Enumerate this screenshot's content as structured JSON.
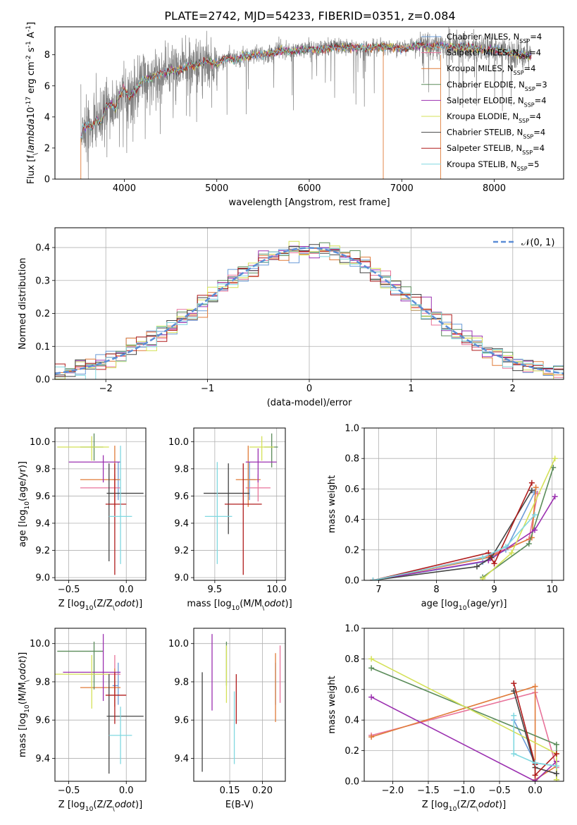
{
  "figure": {
    "title": "PLATE=2742, MJD=54233, FIBERID=0351, z=0.084"
  },
  "series": [
    {
      "name": "Chabrier MILES, N$_{SSP}$=4",
      "label_main": "Chabrier MILES, N",
      "label_sub": "SSP",
      "label_tail": "=4",
      "color": "#6a9bd8"
    },
    {
      "name": "Salpeter MILES, N$_{SSP}$=4",
      "label_main": "Salpeter MILES, N",
      "label_sub": "SSP",
      "label_tail": "=4",
      "color": "#e8739a"
    },
    {
      "name": "Kroupa MILES, N$_{SSP}$=4",
      "label_main": "Kroupa MILES, N",
      "label_sub": "SSP",
      "label_tail": "=4",
      "color": "#e07b39"
    },
    {
      "name": "Chabrier ELODIE, N$_{SSP}$=3",
      "label_main": "Chabrier ELODIE, N",
      "label_sub": "SSP",
      "label_tail": "=3",
      "color": "#5b8c5a"
    },
    {
      "name": "Salpeter ELODIE, N$_{SSP}$=4",
      "label_main": "Salpeter ELODIE, N",
      "label_sub": "SSP",
      "label_tail": "=4",
      "color": "#9b30b0"
    },
    {
      "name": "Kroupa ELODIE, N$_{SSP}$=4",
      "label_main": "Kroupa ELODIE, N",
      "label_sub": "SSP",
      "label_tail": "=4",
      "color": "#d4e157"
    },
    {
      "name": "Chabrier STELIB, N$_{SSP}$=4",
      "label_main": "Chabrier STELIB, N",
      "label_sub": "SSP",
      "label_tail": "=4",
      "color": "#444444"
    },
    {
      "name": "Salpeter STELIB, N$_{SSP}$=4",
      "label_main": "Salpeter STELIB, N",
      "label_sub": "SSP",
      "label_tail": "=4",
      "color": "#b01c1c"
    },
    {
      "name": "Kroupa STELIB, N$_{SSP}$=5",
      "label_main": "Kroupa STELIB, N",
      "label_sub": "SSP",
      "label_tail": "=5",
      "color": "#80d8e0"
    }
  ],
  "chart_data": [
    {
      "id": "spectrum",
      "type": "line",
      "xlabel": "wavelength [Angstrom, rest frame]",
      "ylabel": "Flux [f$_\\lambda$10$^{-17}$ erg cm$^{-2}$ s$^{-1}$ A$^{-1}$]",
      "xlim": [
        3250,
        8750
      ],
      "ylim": [
        0,
        9.8
      ],
      "xticks": [
        4000,
        5000,
        6000,
        7000,
        8000
      ],
      "yticks": [
        0,
        2,
        4,
        6,
        8
      ],
      "grid": false,
      "legend": "upper-right",
      "data_color": "#808080",
      "model_color": "#80d8e0",
      "model": {
        "x": [
          3530,
          3550,
          3600,
          3650,
          3700,
          3750,
          3800,
          3850,
          3900,
          3950,
          4000,
          4050,
          4100,
          4150,
          4200,
          4300,
          4400,
          4500,
          4600,
          4700,
          4800,
          4900,
          5000,
          5100,
          5200,
          5300,
          5400,
          5500,
          5600,
          5700,
          5800,
          5900,
          6000,
          6100,
          6200,
          6300,
          6400,
          6500,
          6600,
          6700,
          6800,
          6900,
          7000,
          7100,
          7200,
          7300,
          7400,
          7500,
          7600,
          7700,
          7800,
          7900,
          8000,
          8100,
          8200,
          8300,
          8400
        ],
        "y": [
          2.6,
          3.2,
          3.5,
          3.3,
          3.9,
          3.6,
          4.7,
          4.9,
          4.5,
          5.4,
          5.8,
          5.2,
          5.6,
          5.9,
          6.4,
          6.5,
          6.8,
          7.0,
          7.0,
          7.3,
          7.4,
          7.6,
          7.4,
          7.8,
          7.7,
          7.9,
          8.0,
          8.0,
          8.1,
          8.3,
          8.2,
          8.3,
          8.4,
          8.3,
          8.4,
          8.5,
          8.5,
          8.5,
          8.4,
          8.5,
          8.5,
          8.5,
          8.4,
          8.5,
          8.6,
          8.5,
          8.6,
          8.5,
          8.5,
          8.5,
          8.4,
          8.3,
          8.3,
          8.2,
          8.1,
          8.0,
          7.9
        ]
      }
    },
    {
      "id": "residuals",
      "type": "bar",
      "xlabel": "(data-model)/error",
      "ylabel": "Normed distribution",
      "xlim": [
        -2.5,
        2.5
      ],
      "ylim": [
        0,
        0.46
      ],
      "xticks": [
        -2,
        -1,
        0,
        1,
        2
      ],
      "yticks": [
        0.0,
        0.1,
        0.2,
        0.3,
        0.4
      ],
      "grid": true,
      "legend": "upper-right",
      "legend_label": "$\\mathcal{N}(0,1)$",
      "legend_label_text": "𝒩(0, 1)",
      "gaussian_color": "#5b8dd6",
      "bin_width": 0.1,
      "bin_start": -2.5
    },
    {
      "id": "age-vs-Z",
      "type": "scatter",
      "xlabel": "Z [log$_{10}$(Z/Z$_\\odot$)]",
      "ylabel": "age  [log$_{10}$(age/yr)]",
      "xlim": [
        -0.62,
        0.17
      ],
      "ylim": [
        8.98,
        10.1
      ],
      "xticks": [
        -0.5,
        0.0
      ],
      "yticks": [
        9.0,
        9.2,
        9.4,
        9.6,
        9.8,
        10.0
      ],
      "grid": true,
      "points": [
        {
          "series": 0,
          "x": -0.07,
          "y": 9.72,
          "xerr": [
            0.05,
            0.0
          ],
          "yerr": [
            0.15,
            0.13
          ]
        },
        {
          "series": 1,
          "x": -0.1,
          "y": 9.66,
          "xerr": [
            0.3,
            0.05
          ],
          "yerr": [
            0.1,
            0.1
          ]
        },
        {
          "series": 2,
          "x": -0.1,
          "y": 9.72,
          "xerr": [
            0.3,
            0.05
          ],
          "yerr": [
            0.2,
            0.25
          ]
        },
        {
          "series": 3,
          "x": -0.28,
          "y": 9.96,
          "xerr": [
            0.12,
            0.08
          ],
          "yerr": [
            0.1,
            0.1
          ]
        },
        {
          "series": 4,
          "x": -0.2,
          "y": 9.85,
          "xerr": [
            0.3,
            0.15
          ],
          "yerr": [
            0.15,
            0.05
          ]
        },
        {
          "series": 5,
          "x": -0.3,
          "y": 9.96,
          "xerr": [
            0.3,
            0.15
          ],
          "yerr": [
            0.1,
            0.08
          ]
        },
        {
          "series": 6,
          "x": -0.15,
          "y": 9.62,
          "xerr": [
            0.02,
            0.3
          ],
          "yerr": [
            0.5,
            0.22
          ]
        },
        {
          "series": 7,
          "x": -0.1,
          "y": 9.54,
          "xerr": [
            0.08,
            0.1
          ],
          "yerr": [
            0.52,
            0.3
          ]
        },
        {
          "series": 8,
          "x": -0.05,
          "y": 9.45,
          "xerr": [
            0.1,
            0.1
          ],
          "yerr": [
            0.35,
            0.52
          ]
        }
      ]
    },
    {
      "id": "age-vs-mass",
      "type": "scatter",
      "xlabel": "mass [log$_{10}$(M/M$_\\odot$)]",
      "ylabel": "",
      "xlim": [
        9.33,
        10.07
      ],
      "ylim": [
        8.98,
        10.1
      ],
      "xticks": [
        9.5,
        10.0
      ],
      "yticks": [
        9.0,
        9.2,
        9.4,
        9.6,
        9.8,
        10.0
      ],
      "grid": true,
      "points": [
        {
          "series": 0,
          "x": 9.78,
          "y": 9.72,
          "xerr": [
            0.05,
            0.05
          ],
          "yerr": [
            0.15,
            0.13
          ]
        },
        {
          "series": 1,
          "x": 9.85,
          "y": 9.66,
          "xerr": [
            0.1,
            0.1
          ],
          "yerr": [
            0.1,
            0.1
          ]
        },
        {
          "series": 2,
          "x": 9.77,
          "y": 9.72,
          "xerr": [
            0.1,
            0.1
          ],
          "yerr": [
            0.2,
            0.25
          ]
        },
        {
          "series": 3,
          "x": 9.96,
          "y": 9.96,
          "xerr": [
            0.06,
            0.05
          ],
          "yerr": [
            0.15,
            0.1
          ]
        },
        {
          "series": 4,
          "x": 9.85,
          "y": 9.85,
          "xerr": [
            0.1,
            0.15
          ],
          "yerr": [
            0.15,
            0.1
          ]
        },
        {
          "series": 5,
          "x": 9.88,
          "y": 9.96,
          "xerr": [
            0.1,
            0.1
          ],
          "yerr": [
            0.1,
            0.08
          ]
        },
        {
          "series": 6,
          "x": 9.61,
          "y": 9.62,
          "xerr": [
            0.2,
            0.17
          ],
          "yerr": [
            0.3,
            0.22
          ]
        },
        {
          "series": 7,
          "x": 9.73,
          "y": 9.54,
          "xerr": [
            0.15,
            0.15
          ],
          "yerr": [
            0.52,
            0.3
          ]
        },
        {
          "series": 8,
          "x": 9.52,
          "y": 9.45,
          "xerr": [
            0.1,
            0.12
          ],
          "yerr": [
            0.35,
            0.4
          ]
        }
      ]
    },
    {
      "id": "weight-vs-age",
      "type": "line",
      "xlabel": "age  [log$_{10}$(age/yr)]",
      "ylabel": "mass weight",
      "xlim": [
        6.75,
        10.2
      ],
      "ylim": [
        0,
        1.0
      ],
      "xticks": [
        7,
        8,
        9,
        10
      ],
      "yticks": [
        0.0,
        0.2,
        0.4,
        0.6,
        0.8,
        1.0
      ],
      "grid": true,
      "series": [
        {
          "series": 0,
          "x": [
            6.9,
            8.8,
            9.2,
            9.7
          ],
          "y": [
            0.0,
            0.12,
            0.2,
            0.58
          ]
        },
        {
          "series": 1,
          "x": [
            6.9,
            8.9,
            9.6,
            9.75
          ],
          "y": [
            0.0,
            0.16,
            0.27,
            0.57
          ]
        },
        {
          "series": 2,
          "x": [
            6.9,
            8.9,
            9.65,
            9.72
          ],
          "y": [
            0.0,
            0.15,
            0.28,
            0.61
          ]
        },
        {
          "series": 3,
          "x": [
            8.8,
            9.6,
            10.02
          ],
          "y": [
            0.02,
            0.24,
            0.74
          ]
        },
        {
          "series": 4,
          "x": [
            6.9,
            8.9,
            9.7,
            10.05
          ],
          "y": [
            0.0,
            0.13,
            0.33,
            0.55
          ]
        },
        {
          "series": 5,
          "x": [
            8.8,
            9.3,
            10.05
          ],
          "y": [
            0.01,
            0.18,
            0.8
          ]
        },
        {
          "series": 6,
          "x": [
            6.9,
            8.7,
            8.95,
            9.65
          ],
          "y": [
            0.0,
            0.09,
            0.15,
            0.59
          ]
        },
        {
          "series": 7,
          "x": [
            6.9,
            8.9,
            9.0,
            9.65
          ],
          "y": [
            0.0,
            0.18,
            0.11,
            0.64
          ]
        },
        {
          "series": 8,
          "x": [
            6.9,
            8.8,
            9.2,
            9.7
          ],
          "y": [
            0.0,
            0.15,
            0.22,
            0.43
          ]
        }
      ]
    },
    {
      "id": "mass-vs-Z",
      "type": "scatter",
      "xlabel": "Z [log$_{10}$(Z/Z$_\\odot$)]",
      "ylabel": "mass [log$_{10}$(M/M$_\\odot$)]",
      "xlim": [
        -0.62,
        0.17
      ],
      "ylim": [
        9.28,
        10.08
      ],
      "xticks": [
        -0.5,
        0.0
      ],
      "yticks": [
        9.4,
        9.6,
        9.8,
        10.0
      ],
      "grid": true,
      "points": [
        {
          "series": 0,
          "x": -0.07,
          "y": 9.78,
          "xerr": [
            0.05,
            0.0
          ],
          "yerr": [
            0.1,
            0.12
          ]
        },
        {
          "series": 1,
          "x": -0.1,
          "y": 9.84,
          "xerr": [
            0.3,
            0.05
          ],
          "yerr": [
            0.1,
            0.1
          ]
        },
        {
          "series": 2,
          "x": -0.1,
          "y": 9.77,
          "xerr": [
            0.3,
            0.05
          ],
          "yerr": [
            0.1,
            0.1
          ]
        },
        {
          "series": 3,
          "x": -0.28,
          "y": 9.96,
          "xerr": [
            0.32,
            0.08
          ],
          "yerr": [
            0.2,
            0.05
          ]
        },
        {
          "series": 4,
          "x": -0.2,
          "y": 9.85,
          "xerr": [
            0.35,
            0.15
          ],
          "yerr": [
            0.15,
            0.2
          ]
        },
        {
          "series": 5,
          "x": -0.3,
          "y": 9.84,
          "xerr": [
            0.35,
            0.15
          ],
          "yerr": [
            0.18,
            0.1
          ]
        },
        {
          "series": 6,
          "x": -0.15,
          "y": 9.62,
          "xerr": [
            0.02,
            0.3
          ],
          "yerr": [
            0.3,
            0.22
          ]
        },
        {
          "series": 7,
          "x": -0.1,
          "y": 9.73,
          "xerr": [
            0.08,
            0.1
          ],
          "yerr": [
            0.15,
            0.12
          ]
        },
        {
          "series": 8,
          "x": -0.05,
          "y": 9.52,
          "xerr": [
            0.1,
            0.1
          ],
          "yerr": [
            0.15,
            0.15
          ]
        }
      ]
    },
    {
      "id": "mass-vs-EBV",
      "type": "scatter",
      "xlabel": "E(B-V)",
      "ylabel": "",
      "xlim": [
        0.095,
        0.235
      ],
      "ylim": [
        9.28,
        10.08
      ],
      "xticks": [
        0.15,
        0.2
      ],
      "yticks": [
        9.4,
        9.6,
        9.8,
        10.0
      ],
      "grid": true,
      "points": [
        {
          "series": 0,
          "x": 0.22,
          "y": 9.78,
          "xerr": [
            0,
            0
          ],
          "yerr": [
            0.1,
            0.12
          ]
        },
        {
          "series": 1,
          "x": 0.227,
          "y": 9.84,
          "xerr": [
            0,
            0
          ],
          "yerr": [
            0.15,
            0.15
          ]
        },
        {
          "series": 2,
          "x": 0.22,
          "y": 9.77,
          "xerr": [
            0,
            0
          ],
          "yerr": [
            0.18,
            0.18
          ]
        },
        {
          "series": 3,
          "x": 0.145,
          "y": 9.86,
          "xerr": [
            0,
            0
          ],
          "yerr": [
            0.08,
            0.15
          ]
        },
        {
          "series": 4,
          "x": 0.123,
          "y": 9.85,
          "xerr": [
            0,
            0
          ],
          "yerr": [
            0.2,
            0.2
          ]
        },
        {
          "series": 5,
          "x": 0.145,
          "y": 9.84,
          "xerr": [
            0,
            0
          ],
          "yerr": [
            0.15,
            0.15
          ]
        },
        {
          "series": 6,
          "x": 0.108,
          "y": 9.59,
          "xerr": [
            0,
            0
          ],
          "yerr": [
            0.26,
            0.26
          ]
        },
        {
          "series": 7,
          "x": 0.16,
          "y": 9.73,
          "xerr": [
            0,
            0
          ],
          "yerr": [
            0.15,
            0.11
          ]
        },
        {
          "series": 8,
          "x": 0.157,
          "y": 9.56,
          "xerr": [
            0,
            0
          ],
          "yerr": [
            0.19,
            0.19
          ]
        }
      ]
    },
    {
      "id": "weight-vs-Z",
      "type": "line",
      "xlabel": "Z [log$_{10}$(Z/Z$_\\odot$)]",
      "ylabel": "mass weight",
      "xlim": [
        -2.4,
        0.4
      ],
      "ylim": [
        0,
        1.0
      ],
      "xticks": [
        -2.0,
        -1.5,
        -1.0,
        -0.5,
        0.0
      ],
      "yticks": [
        0.0,
        0.2,
        0.4,
        0.6,
        0.8,
        1.0
      ],
      "grid": true,
      "series": [
        {
          "series": 0,
          "x": [
            -0.3,
            0.0,
            0.3
          ],
          "y": [
            0.4,
            0.12,
            0.1
          ]
        },
        {
          "series": 1,
          "x": [
            -2.3,
            0.0,
            0.3
          ],
          "y": [
            0.3,
            0.58,
            0.09
          ]
        },
        {
          "series": 2,
          "x": [
            -2.3,
            0.0,
            0.0,
            0.3
          ],
          "y": [
            0.29,
            0.62,
            0.01,
            0.1
          ]
        },
        {
          "series": 3,
          "x": [
            -2.3,
            0.3,
            0.3
          ],
          "y": [
            0.74,
            0.24,
            0.01
          ]
        },
        {
          "series": 4,
          "x": [
            -2.3,
            0.0,
            0.3
          ],
          "y": [
            0.55,
            0.0,
            0.13
          ]
        },
        {
          "series": 5,
          "x": [
            -2.3,
            0.3,
            0.3
          ],
          "y": [
            0.8,
            0.18,
            0.01
          ]
        },
        {
          "series": 6,
          "x": [
            -0.3,
            0.0,
            0.3
          ],
          "y": [
            0.59,
            0.09,
            0.05
          ]
        },
        {
          "series": 7,
          "x": [
            -0.3,
            0.0,
            0.0,
            0.3
          ],
          "y": [
            0.64,
            0.11,
            0.04,
            0.18
          ]
        },
        {
          "series": 8,
          "x": [
            -0.3,
            -0.3,
            0.0,
            0.3
          ],
          "y": [
            0.43,
            0.18,
            0.12,
            0.1
          ]
        }
      ]
    }
  ]
}
